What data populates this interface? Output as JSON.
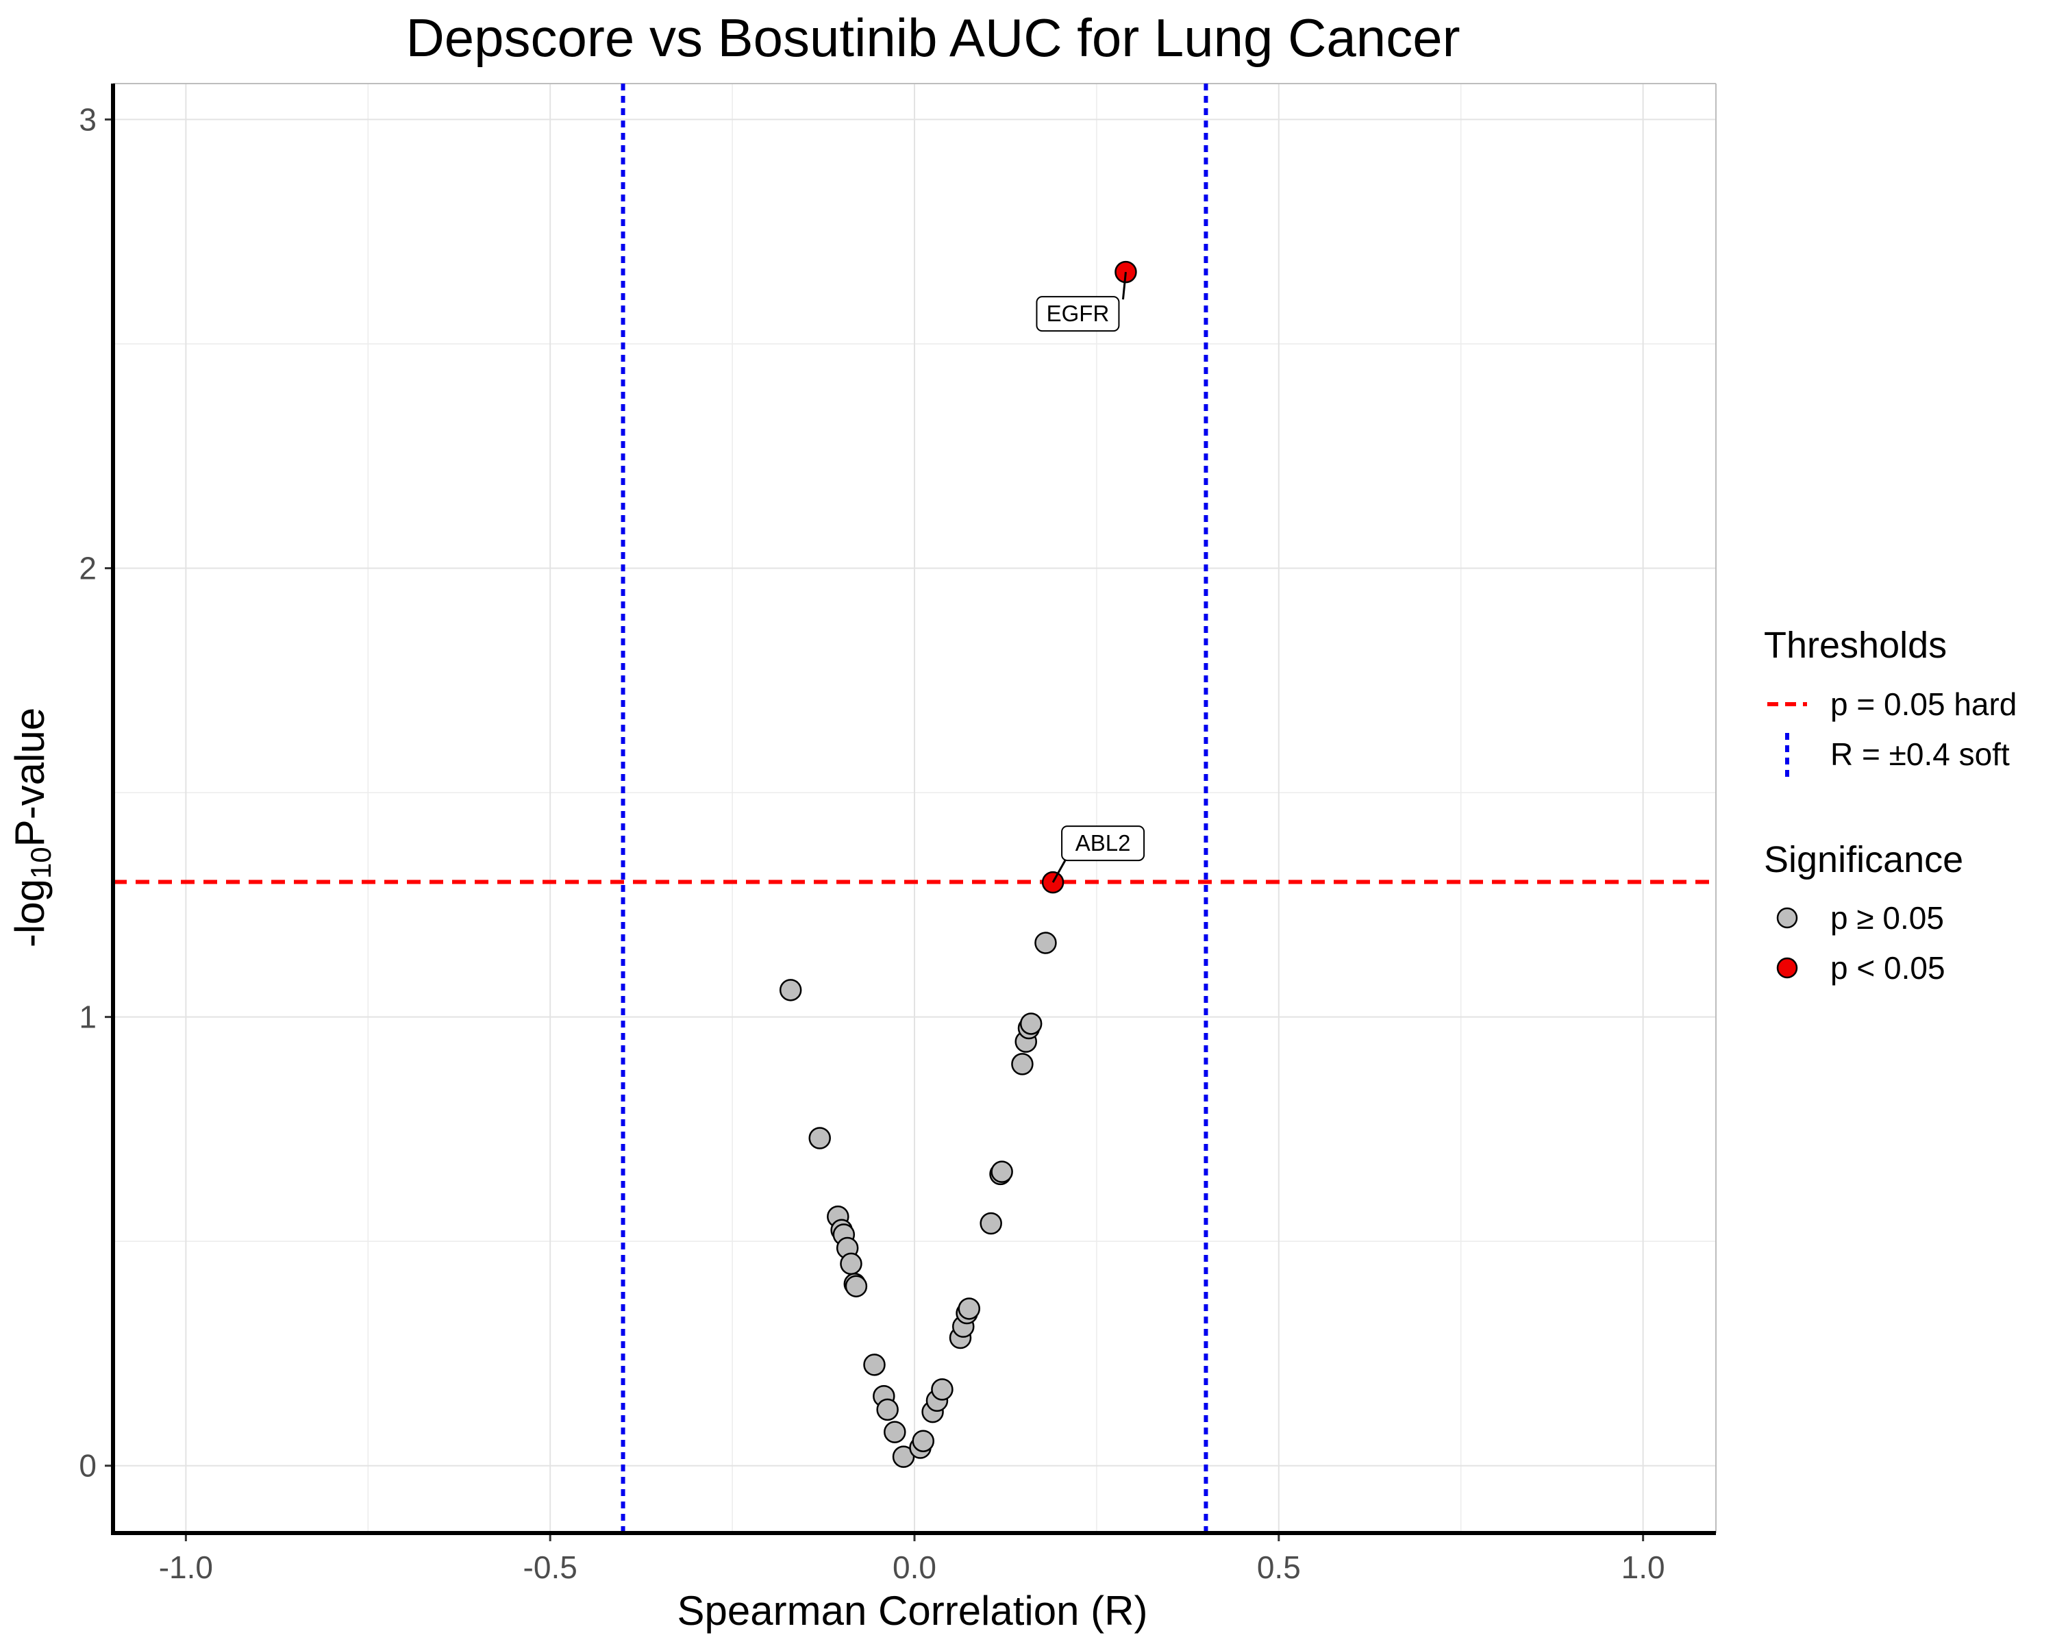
{
  "chart_data": {
    "type": "scatter",
    "title": "Depscore vs Bosutinib AUC for Lung Cancer",
    "xlabel": "Spearman Correlation (R)",
    "ylabel": {
      "prefix": "-log",
      "sub": "10",
      "suffix": "P-value"
    },
    "xlim": [
      -1.1,
      1.1
    ],
    "ylim": [
      -0.15,
      3.08
    ],
    "x_ticks": [
      -1.0,
      -0.5,
      0.0,
      0.5,
      1.0
    ],
    "x_tick_labels": [
      "-1.0",
      "-0.5",
      "0.0",
      "0.5",
      "1.0"
    ],
    "y_ticks": [
      0,
      1,
      2,
      3
    ],
    "y_tick_labels": [
      "0",
      "1",
      "2",
      "3"
    ],
    "grid": true,
    "thresholds": {
      "hline": {
        "y": 1.301,
        "color": "#ff0000",
        "style": "dashed"
      },
      "vlines": {
        "x": [
          -0.4,
          0.4
        ],
        "color": "#0000ee",
        "style": "dotted"
      }
    },
    "colors": {
      "not_significant": "#bebebe",
      "significant": "#ee0000"
    },
    "series": [
      {
        "name": "p ≥ 0.05",
        "points": [
          [
            -0.17,
            1.06
          ],
          [
            -0.13,
            0.73
          ],
          [
            -0.105,
            0.555
          ],
          [
            -0.1,
            0.525
          ],
          [
            -0.097,
            0.515
          ],
          [
            -0.092,
            0.485
          ],
          [
            -0.087,
            0.45
          ],
          [
            -0.082,
            0.405
          ],
          [
            -0.08,
            0.4
          ],
          [
            -0.055,
            0.225
          ],
          [
            -0.042,
            0.155
          ],
          [
            -0.037,
            0.125
          ],
          [
            -0.027,
            0.075
          ],
          [
            -0.015,
            0.02
          ],
          [
            0.008,
            0.04
          ],
          [
            0.012,
            0.055
          ],
          [
            0.025,
            0.12
          ],
          [
            0.031,
            0.145
          ],
          [
            0.038,
            0.17
          ],
          [
            0.063,
            0.285
          ],
          [
            0.067,
            0.31
          ],
          [
            0.072,
            0.34
          ],
          [
            0.075,
            0.35
          ],
          [
            0.105,
            0.54
          ],
          [
            0.118,
            0.65
          ],
          [
            0.12,
            0.655
          ],
          [
            0.148,
            0.895
          ],
          [
            0.153,
            0.945
          ],
          [
            0.157,
            0.975
          ],
          [
            0.16,
            0.985
          ],
          [
            0.18,
            1.165
          ]
        ]
      },
      {
        "name": "p < 0.05",
        "points": [
          [
            0.19,
            1.3
          ],
          [
            0.29,
            2.66
          ]
        ]
      }
    ],
    "annotations": [
      {
        "text": "EGFR",
        "x": 0.29,
        "y": 2.66,
        "position": "below-left"
      },
      {
        "text": "ABL2",
        "x": 0.19,
        "y": 1.3,
        "position": "above-right"
      }
    ],
    "legend": {
      "placement": "right",
      "thresholds_title": "Thresholds",
      "thresholds_items": [
        "p = 0.05 hard",
        "R = ±0.4 soft"
      ],
      "significance_title": "Significance",
      "significance_items": [
        "p ≥ 0.05",
        "p < 0.05"
      ]
    }
  }
}
